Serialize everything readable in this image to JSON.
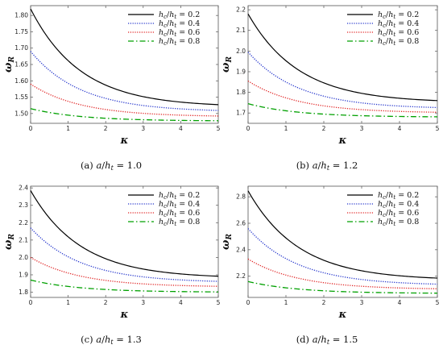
{
  "chart_data": [
    {
      "type": "line",
      "caption": "(a)  a/h_t = 1.0",
      "caption_label": "(a)",
      "caption_param": "1.0",
      "xlabel": "κ",
      "ylabel": "ω_R",
      "xlim": [
        0,
        5
      ],
      "ylim": [
        1.47,
        1.83
      ],
      "xticks": [
        0,
        1,
        2,
        3,
        4,
        5
      ],
      "yticks": [
        1.5,
        1.55,
        1.6,
        1.65,
        1.7,
        1.75,
        1.8
      ],
      "ytick_labels": [
        "1.50",
        "1.55",
        "1.60",
        "1.65",
        "1.70",
        "1.75",
        "1.80"
      ],
      "series": [
        {
          "name": "h_c/h_t = 0.2",
          "ratio": "0.2",
          "start": 1.82,
          "end": 1.52,
          "k": 0.75,
          "color": "#000000",
          "style": "solid"
        },
        {
          "name": "h_c/h_t = 0.4",
          "ratio": "0.4",
          "start": 1.69,
          "end": 1.505,
          "k": 0.75,
          "color": "#2233cc",
          "style": "dotted"
        },
        {
          "name": "h_c/h_t = 0.6",
          "ratio": "0.6",
          "start": 1.59,
          "end": 1.49,
          "k": 0.75,
          "color": "#e02020",
          "style": "dotted"
        },
        {
          "name": "h_c/h_t = 0.8",
          "ratio": "0.8",
          "start": 1.515,
          "end": 1.477,
          "k": 0.75,
          "color": "#00a000",
          "style": "dashdot"
        }
      ]
    },
    {
      "type": "line",
      "caption": "(b)  a/h_t = 1.2",
      "caption_label": "(b)",
      "caption_param": "1.2",
      "xlabel": "κ",
      "ylabel": "ω_R",
      "xlim": [
        0,
        5
      ],
      "ylim": [
        1.65,
        2.22
      ],
      "xticks": [
        0,
        1,
        2,
        3,
        4,
        5
      ],
      "yticks": [
        1.7,
        1.8,
        1.9,
        2.0,
        2.1,
        2.2
      ],
      "ytick_labels": [
        "1.7",
        "1.8",
        "1.9",
        "2.0",
        "2.1",
        "2.2"
      ],
      "series": [
        {
          "name": "h_c/h_t = 0.2",
          "ratio": "0.2",
          "start": 2.18,
          "end": 1.75,
          "k": 0.75,
          "color": "#000000",
          "style": "solid"
        },
        {
          "name": "h_c/h_t = 0.4",
          "ratio": "0.4",
          "start": 1.995,
          "end": 1.72,
          "k": 0.75,
          "color": "#2233cc",
          "style": "dotted"
        },
        {
          "name": "h_c/h_t = 0.6",
          "ratio": "0.6",
          "start": 1.855,
          "end": 1.7,
          "k": 0.75,
          "color": "#e02020",
          "style": "dotted"
        },
        {
          "name": "h_c/h_t = 0.8",
          "ratio": "0.8",
          "start": 1.745,
          "end": 1.68,
          "k": 0.75,
          "color": "#00a000",
          "style": "dashdot"
        }
      ]
    },
    {
      "type": "line",
      "caption": "(c)  a/h_t = 1.3",
      "caption_label": "(c)",
      "caption_param": "1.3",
      "xlabel": "κ",
      "ylabel": "ω_R",
      "xlim": [
        0,
        5
      ],
      "ylim": [
        1.77,
        2.41
      ],
      "xticks": [
        0,
        1,
        2,
        3,
        4,
        5
      ],
      "yticks": [
        1.8,
        1.9,
        2.0,
        2.1,
        2.2,
        2.3,
        2.4
      ],
      "ytick_labels": [
        "1.8",
        "1.9",
        "2.0",
        "2.1",
        "2.2",
        "2.3",
        "2.4"
      ],
      "series": [
        {
          "name": "h_c/h_t = 0.2",
          "ratio": "0.2",
          "start": 2.385,
          "end": 1.88,
          "k": 0.75,
          "color": "#000000",
          "style": "solid"
        },
        {
          "name": "h_c/h_t = 0.4",
          "ratio": "0.4",
          "start": 2.17,
          "end": 1.855,
          "k": 0.75,
          "color": "#2233cc",
          "style": "dotted"
        },
        {
          "name": "h_c/h_t = 0.6",
          "ratio": "0.6",
          "start": 2.0,
          "end": 1.83,
          "k": 0.75,
          "color": "#e02020",
          "style": "dotted"
        },
        {
          "name": "h_c/h_t = 0.8",
          "ratio": "0.8",
          "start": 1.87,
          "end": 1.8,
          "k": 0.75,
          "color": "#00a000",
          "style": "dashdot"
        }
      ]
    },
    {
      "type": "line",
      "caption": "(d)  a/h_t = 1.5",
      "caption_label": "(d)",
      "caption_param": "1.5",
      "xlabel": "κ",
      "ylabel": "ω_R",
      "xlim": [
        0,
        5
      ],
      "ylim": [
        2.04,
        2.88
      ],
      "xticks": [
        0,
        1,
        2,
        3,
        4,
        5
      ],
      "yticks": [
        2.2,
        2.4,
        2.6,
        2.8
      ],
      "ytick_labels": [
        "2.2",
        "2.4",
        "2.6",
        "2.8"
      ],
      "series": [
        {
          "name": "h_c/h_t = 0.2",
          "ratio": "0.2",
          "start": 2.845,
          "end": 2.17,
          "k": 0.75,
          "color": "#000000",
          "style": "solid"
        },
        {
          "name": "h_c/h_t = 0.4",
          "ratio": "0.4",
          "start": 2.56,
          "end": 2.13,
          "k": 0.75,
          "color": "#2233cc",
          "style": "dotted"
        },
        {
          "name": "h_c/h_t = 0.6",
          "ratio": "0.6",
          "start": 2.33,
          "end": 2.1,
          "k": 0.75,
          "color": "#e02020",
          "style": "dotted"
        },
        {
          "name": "h_c/h_t = 0.8",
          "ratio": "0.8",
          "start": 2.16,
          "end": 2.07,
          "k": 0.75,
          "color": "#00a000",
          "style": "dashdot"
        }
      ]
    }
  ]
}
